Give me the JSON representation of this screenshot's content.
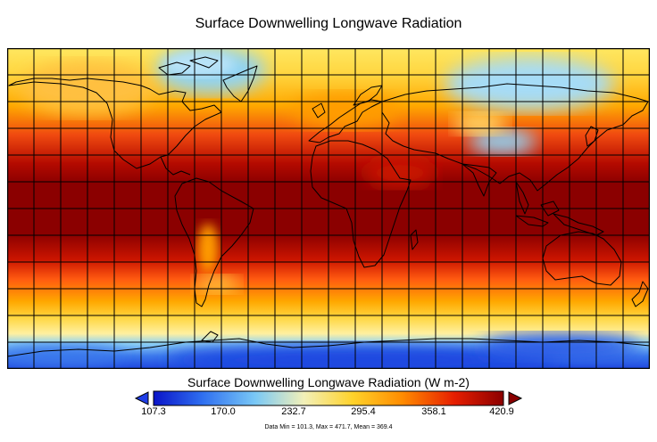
{
  "title": "Surface Downwelling Longwave Radiation",
  "legend": {
    "title": "Surface Downwelling Longwave Radiation (W m-2)",
    "ticks": [
      "107.3",
      "170.0",
      "232.7",
      "295.4",
      "358.1",
      "420.9"
    ],
    "colors": [
      "#0a14c8",
      "#2f6ff0",
      "#79c8f6",
      "#f2f0b8",
      "#ffd22a",
      "#ff8c00",
      "#e61e00",
      "#8b0000"
    ],
    "arrow_low_color": "#1f3ee6",
    "arrow_high_color": "#8b0000"
  },
  "stats": "Data Min = 101.3, Max = 471.7, Mean = 369.4",
  "map": {
    "projection": "equirectangular",
    "grid_spacing_degrees": 10,
    "grid": true,
    "coastlines": true,
    "field_colors": {
      "tropics": "#8b0000",
      "subtropics": "#e02010",
      "midlatitude": "#ff8c00",
      "cool": "#ffd640",
      "cold": "#8fd3f5",
      "polar": "#1e46e0"
    }
  }
}
